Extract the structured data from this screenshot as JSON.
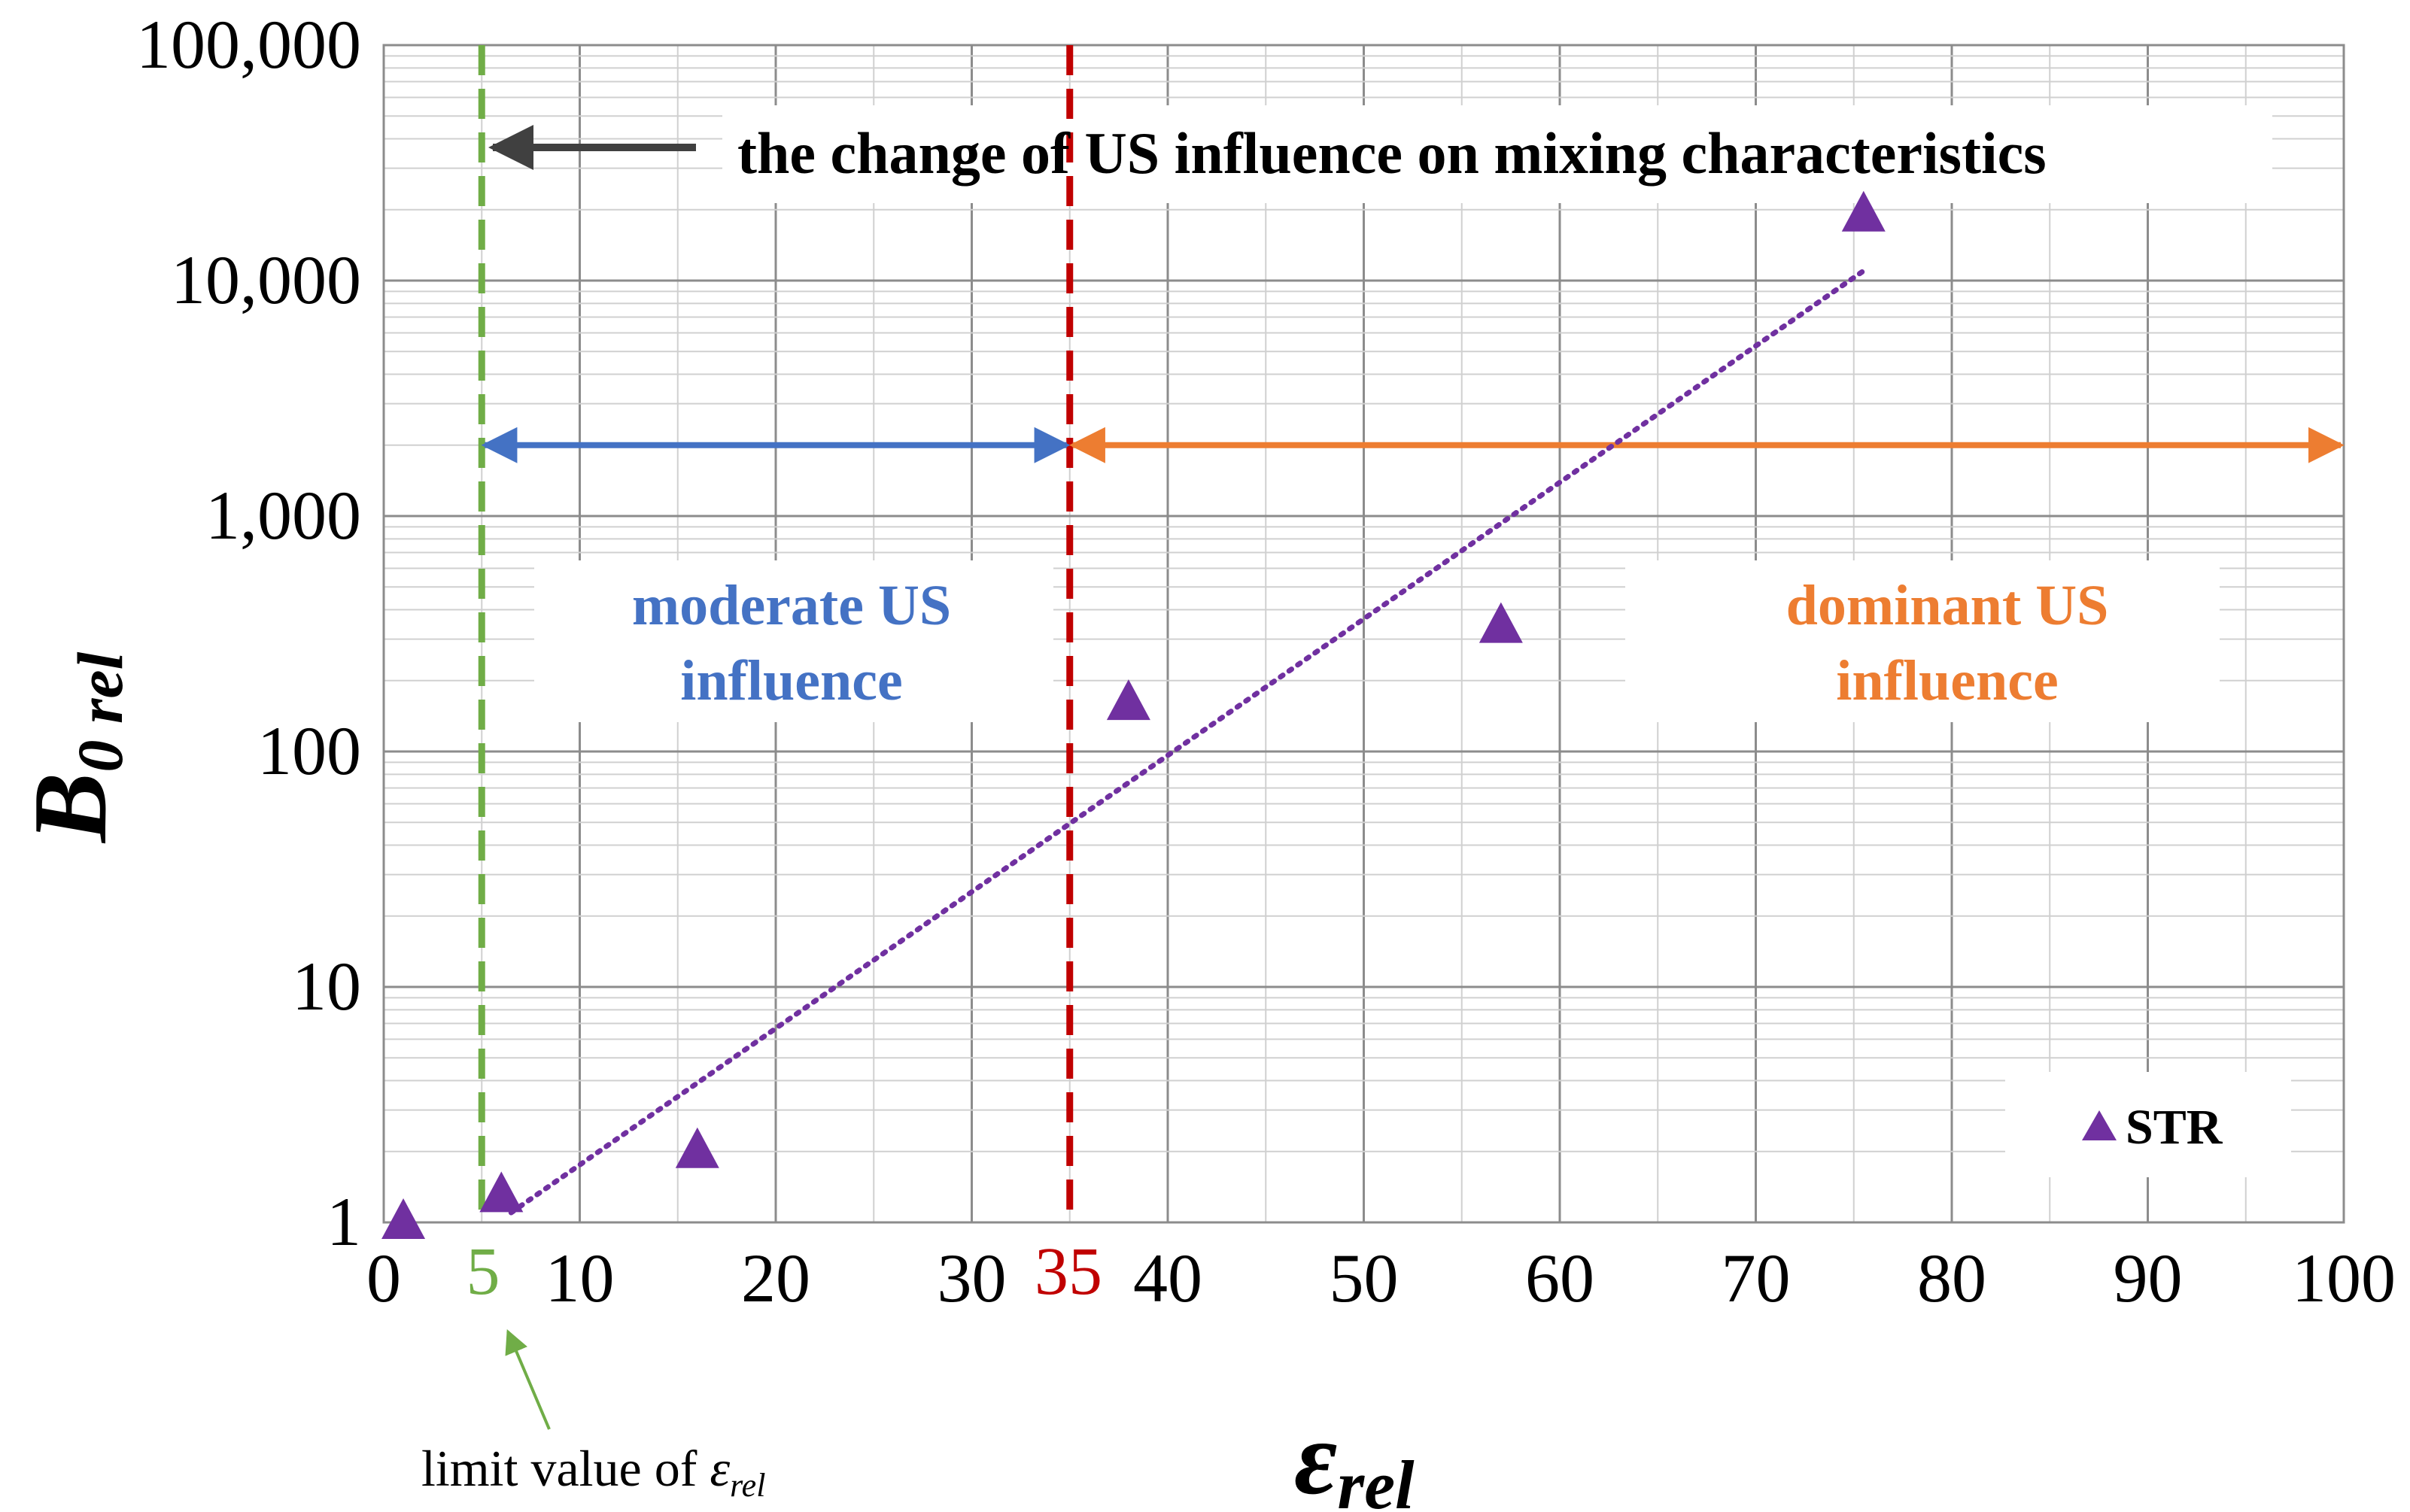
{
  "chart_data": {
    "type": "scatter",
    "xlabel": "ε",
    "xlabel_sub": "rel",
    "ylabel": "B",
    "ylabel_sub": "0 rel",
    "x_range": [
      0,
      100
    ],
    "y_range": [
      1,
      100000
    ],
    "y_scale": "log",
    "x_ticks": [
      0,
      10,
      20,
      30,
      40,
      50,
      60,
      70,
      80,
      90,
      100
    ],
    "y_ticks": [
      1,
      10,
      100,
      1000,
      10000,
      100000
    ],
    "y_tick_labels": [
      "1",
      "10",
      "100",
      "1,000",
      "10,000",
      "100,000"
    ],
    "x_tick_labels": [
      "0",
      "10",
      "20",
      "30",
      "40",
      "50",
      "60",
      "70",
      "80",
      "90",
      "100"
    ],
    "grid": true,
    "series": [
      {
        "name": "STR",
        "marker": "triangle",
        "color": "#7030a0",
        "points": [
          {
            "x": 1,
            "y": 1
          },
          {
            "x": 6,
            "y": 1.3
          },
          {
            "x": 16,
            "y": 2
          },
          {
            "x": 38,
            "y": 160
          },
          {
            "x": 57,
            "y": 340
          },
          {
            "x": 75.5,
            "y": 19000
          }
        ]
      }
    ],
    "trendline": {
      "type": "exponential",
      "from": {
        "x": 6.5,
        "y": 1.1
      },
      "to": {
        "x": 75.5,
        "y": 11000
      },
      "color": "#7030a0",
      "style": "dotted"
    },
    "vertical_lines": [
      {
        "x": 5,
        "label": "5",
        "color": "#70ad47",
        "style": "dashed"
      },
      {
        "x": 35,
        "label": "35",
        "color": "#c00000",
        "style": "dashed"
      }
    ],
    "ranges": [
      {
        "from": 5,
        "to": 35,
        "y": 2000,
        "color": "#4472c4",
        "label_line1": "moderate US",
        "label_line2": "influence"
      },
      {
        "from": 35,
        "to": 100,
        "y": 2000,
        "color": "#ed7d31",
        "label_line1": "dominant US",
        "label_line2": "influence"
      }
    ],
    "annotations": {
      "top_arrow_text": "the change of US influence on mixing characteristics",
      "limit_text": "limit value of ",
      "limit_symbol": "ε",
      "limit_sub": "rel"
    },
    "legend": {
      "position": "bottom-right",
      "label": "STR"
    }
  }
}
